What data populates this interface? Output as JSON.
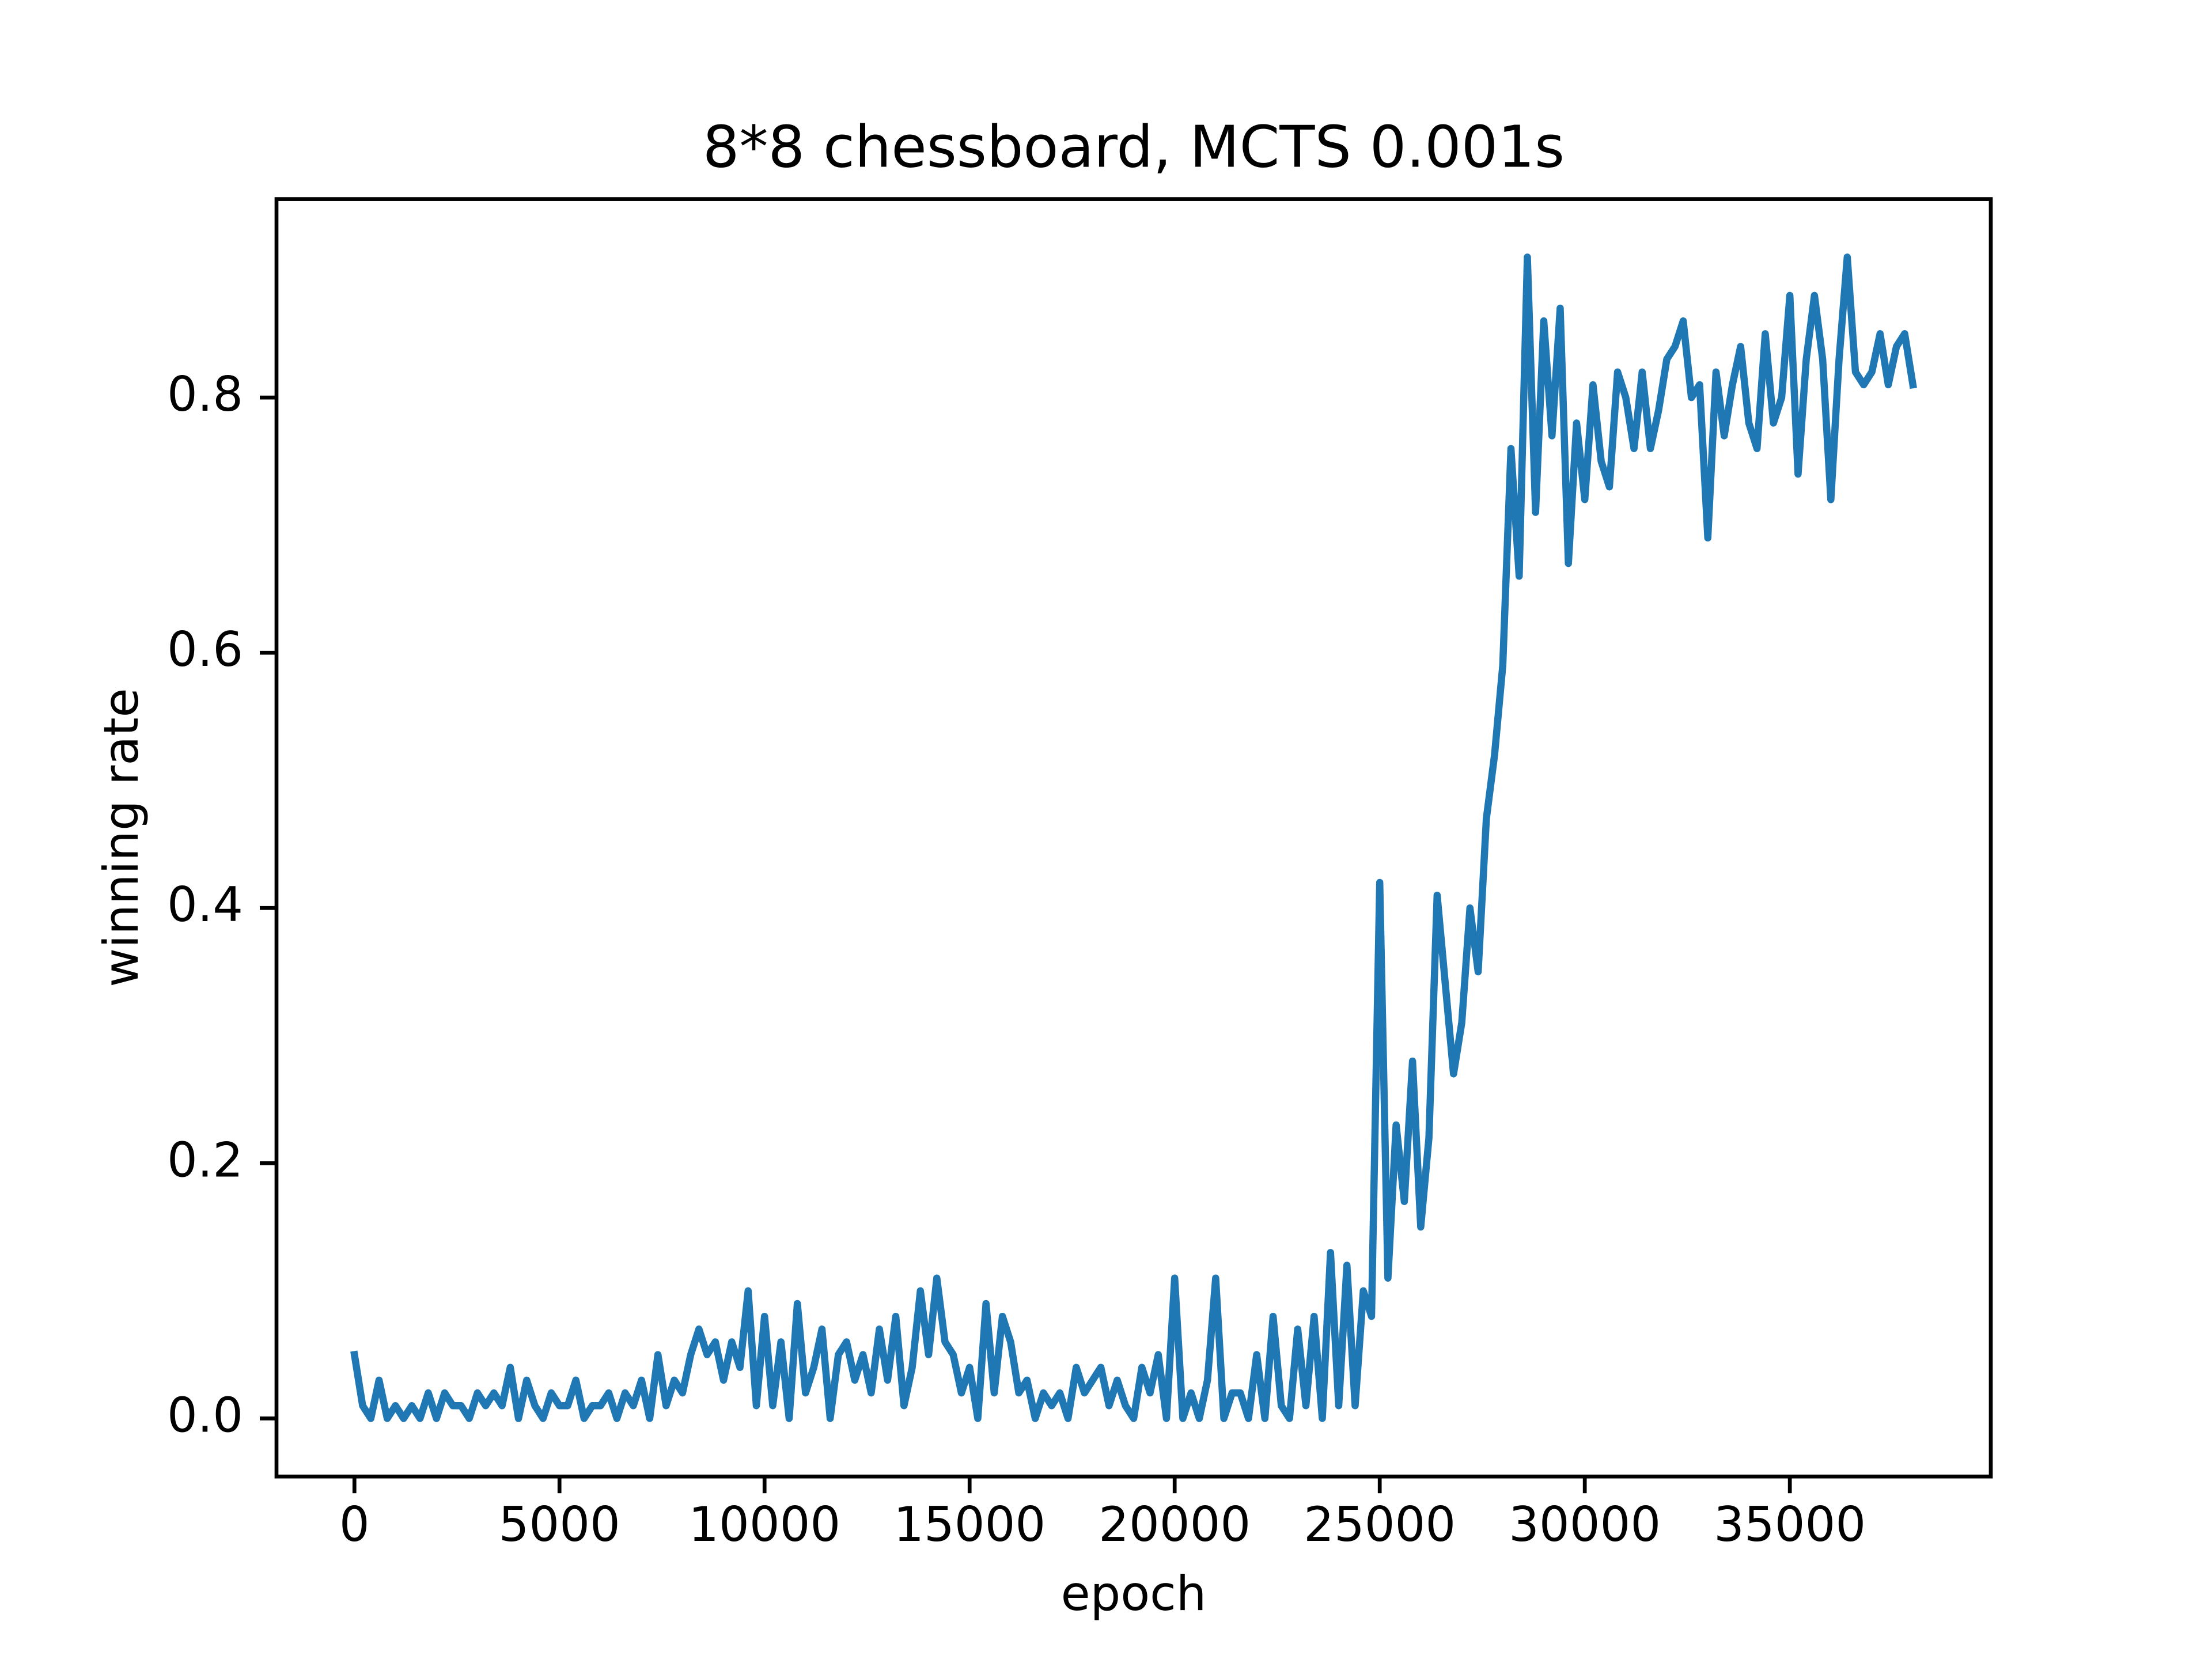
{
  "chart_data": {
    "type": "line",
    "title": "8*8 chessboard, MCTS 0.001s",
    "x_label": "epoch",
    "y_label": "winning rate",
    "x": [
      0,
      200,
      400,
      600,
      800,
      1000,
      1200,
      1400,
      1600,
      1800,
      2000,
      2200,
      2400,
      2600,
      2800,
      3000,
      3200,
      3400,
      3600,
      3800,
      4000,
      4200,
      4400,
      4600,
      4800,
      5000,
      5200,
      5400,
      5600,
      5800,
      6000,
      6200,
      6400,
      6600,
      6800,
      7000,
      7200,
      7400,
      7600,
      7800,
      8000,
      8200,
      8400,
      8600,
      8800,
      9000,
      9200,
      9400,
      9600,
      9800,
      10000,
      10200,
      10400,
      10600,
      10800,
      11000,
      11200,
      11400,
      11600,
      11800,
      12000,
      12200,
      12400,
      12600,
      12800,
      13000,
      13200,
      13400,
      13600,
      13800,
      14000,
      14200,
      14400,
      14600,
      14800,
      15000,
      15200,
      15400,
      15600,
      15800,
      16000,
      16200,
      16400,
      16600,
      16800,
      17000,
      17200,
      17400,
      17600,
      17800,
      18000,
      18200,
      18400,
      18600,
      18800,
      19000,
      19200,
      19400,
      19600,
      19800,
      20000,
      20200,
      20400,
      20600,
      20800,
      21000,
      21200,
      21400,
      21600,
      21800,
      22000,
      22200,
      22400,
      22600,
      22800,
      23000,
      23200,
      23400,
      23600,
      23800,
      24000,
      24200,
      24400,
      24600,
      24800,
      25000,
      25200,
      25400,
      25600,
      25800,
      26000,
      26200,
      26400,
      26600,
      26800,
      27000,
      27200,
      27400,
      27600,
      27800,
      28000,
      28200,
      28400,
      28600,
      28800,
      29000,
      29200,
      29400,
      29600,
      29800,
      30000,
      30200,
      30400,
      30600,
      30800,
      31000,
      31200,
      31400,
      31600,
      31800,
      32000,
      32200,
      32400,
      32600,
      32800,
      33000,
      33200,
      33400,
      33600,
      33800,
      34000,
      34200,
      34400,
      34600,
      34800,
      35000,
      35200,
      35400,
      35600,
      35800,
      36000,
      36200,
      36400,
      36600,
      36800,
      37000,
      37200,
      37400,
      37600,
      37800,
      38000
    ],
    "series": [
      {
        "color": "#1f77b4",
        "values": [
          0.05,
          0.01,
          0.0,
          0.03,
          0.0,
          0.01,
          0.0,
          0.01,
          0.0,
          0.02,
          0.0,
          0.02,
          0.01,
          0.01,
          0.0,
          0.02,
          0.01,
          0.02,
          0.01,
          0.04,
          0.0,
          0.03,
          0.01,
          0.0,
          0.02,
          0.01,
          0.01,
          0.03,
          0.0,
          0.01,
          0.01,
          0.02,
          0.0,
          0.02,
          0.01,
          0.03,
          0.0,
          0.05,
          0.01,
          0.03,
          0.02,
          0.05,
          0.07,
          0.05,
          0.06,
          0.03,
          0.06,
          0.04,
          0.1,
          0.01,
          0.08,
          0.01,
          0.06,
          0.0,
          0.09,
          0.02,
          0.04,
          0.07,
          0.0,
          0.05,
          0.06,
          0.03,
          0.05,
          0.02,
          0.07,
          0.03,
          0.08,
          0.01,
          0.04,
          0.1,
          0.05,
          0.11,
          0.06,
          0.05,
          0.02,
          0.04,
          0.0,
          0.09,
          0.02,
          0.08,
          0.06,
          0.02,
          0.03,
          0.0,
          0.02,
          0.01,
          0.02,
          0.0,
          0.04,
          0.02,
          0.03,
          0.04,
          0.01,
          0.03,
          0.01,
          0.0,
          0.04,
          0.02,
          0.05,
          0.0,
          0.11,
          0.0,
          0.02,
          0.0,
          0.03,
          0.11,
          0.0,
          0.02,
          0.02,
          0.0,
          0.05,
          0.0,
          0.08,
          0.01,
          0.0,
          0.07,
          0.01,
          0.08,
          0.0,
          0.13,
          0.01,
          0.12,
          0.01,
          0.1,
          0.08,
          0.42,
          0.11,
          0.23,
          0.17,
          0.28,
          0.15,
          0.22,
          0.41,
          0.34,
          0.27,
          0.31,
          0.4,
          0.35,
          0.47,
          0.52,
          0.59,
          0.76,
          0.66,
          0.91,
          0.71,
          0.86,
          0.77,
          0.87,
          0.67,
          0.78,
          0.72,
          0.81,
          0.75,
          0.73,
          0.82,
          0.8,
          0.76,
          0.82,
          0.76,
          0.79,
          0.83,
          0.84,
          0.86,
          0.8,
          0.81,
          0.69,
          0.82,
          0.77,
          0.81,
          0.84,
          0.78,
          0.76,
          0.85,
          0.78,
          0.8,
          0.88,
          0.74,
          0.83,
          0.88,
          0.83,
          0.72,
          0.83,
          0.91,
          0.82,
          0.81,
          0.82,
          0.85,
          0.81,
          0.84,
          0.85,
          0.81
        ]
      }
    ],
    "xlim": [
      -1900,
      39900
    ],
    "xticks": [
      0,
      5000,
      10000,
      15000,
      20000,
      25000,
      30000,
      35000
    ],
    "ylim": [
      -0.0455,
      0.9555
    ],
    "yticks": [
      {
        "value": 0,
        "label": "0.0"
      },
      0.2,
      0.4,
      0.6,
      0.8
    ]
  }
}
